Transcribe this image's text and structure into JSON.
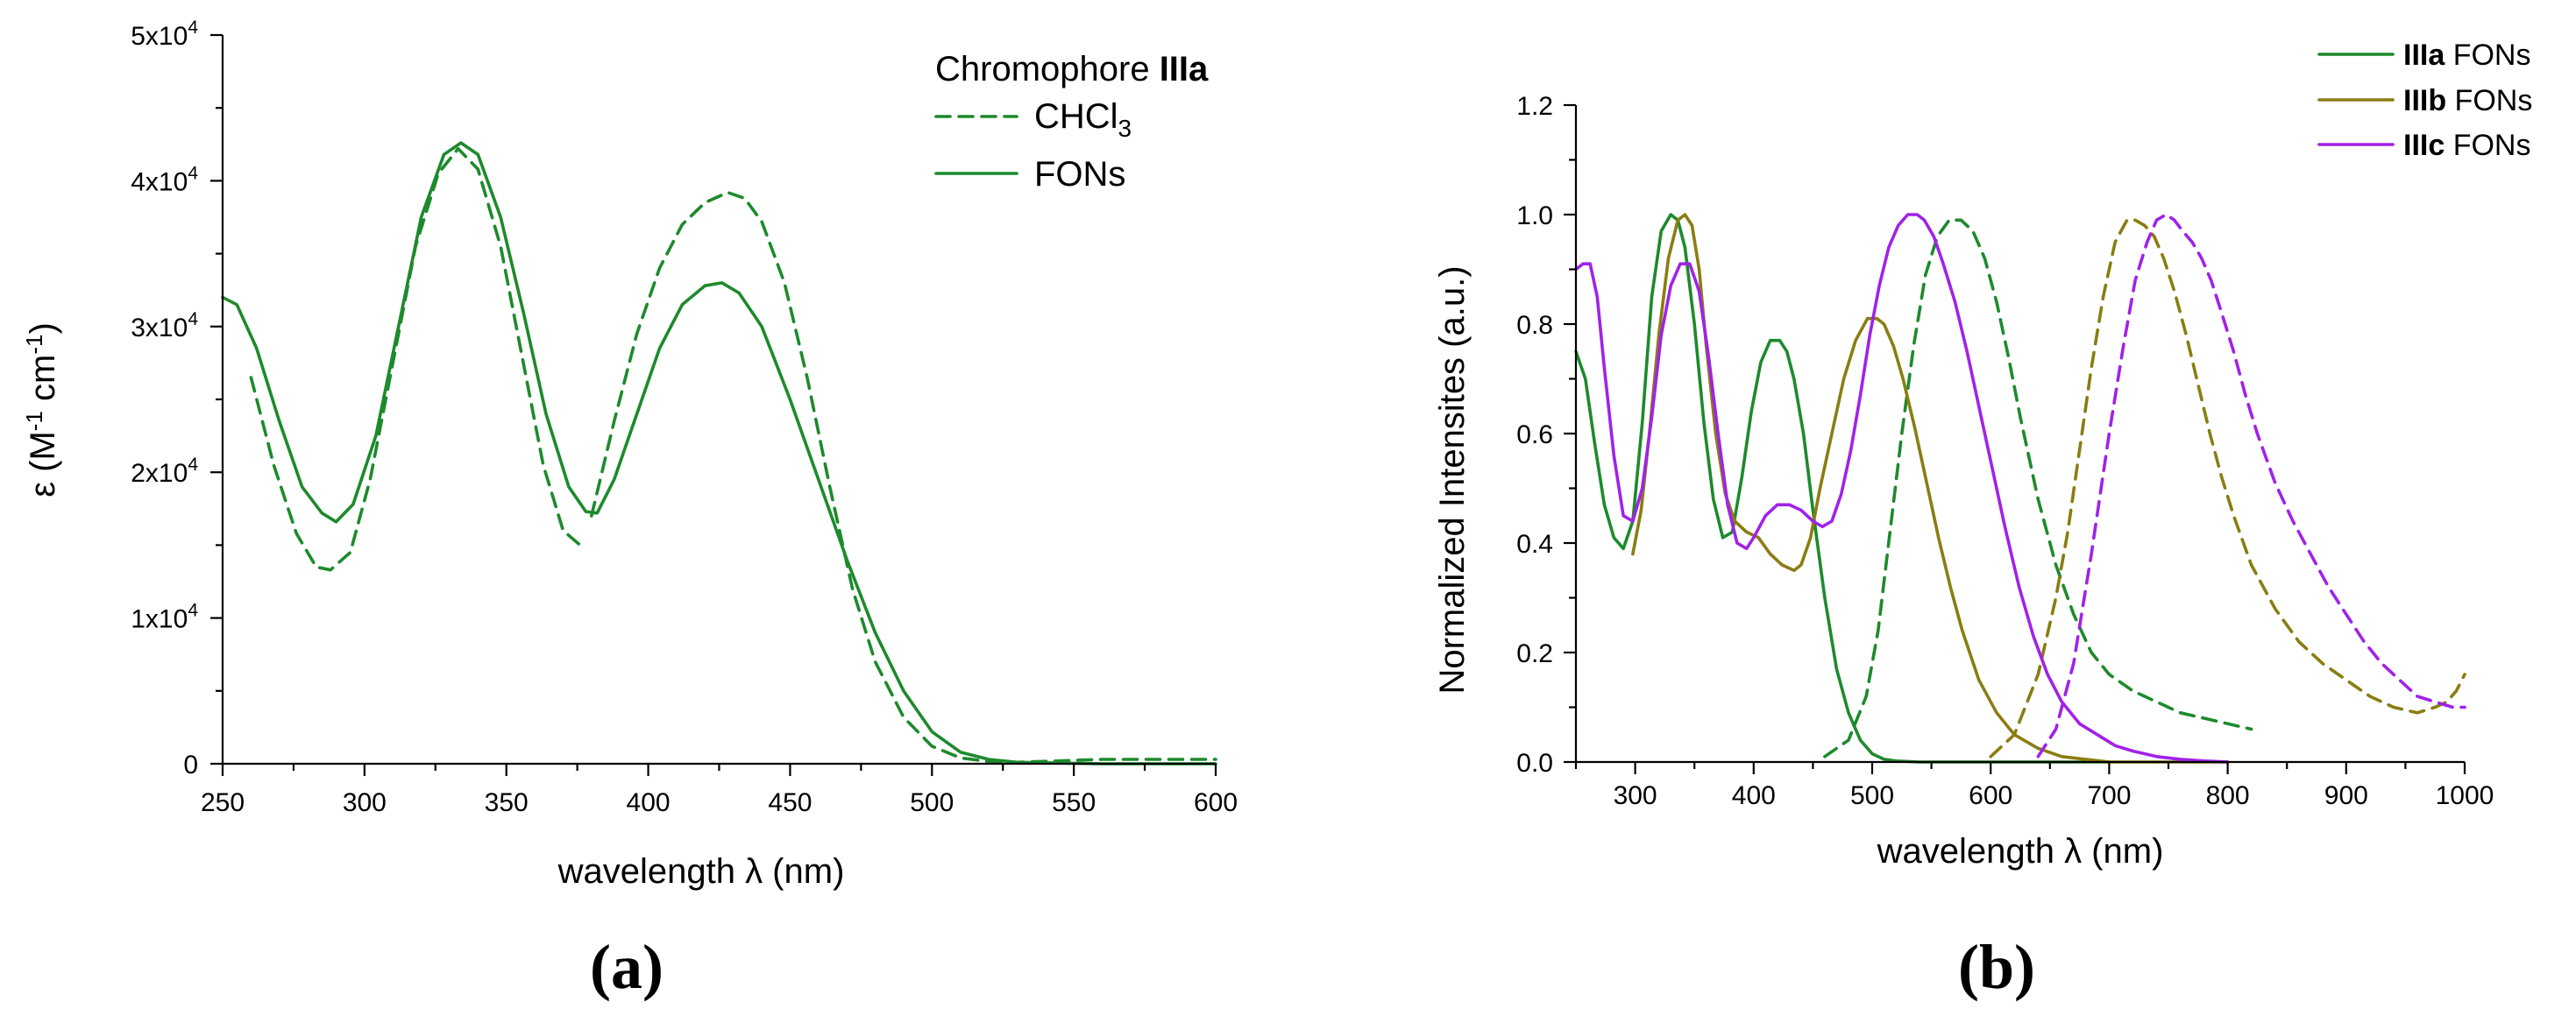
{
  "colors": {
    "green": "#1d8a2c",
    "olive": "#8a7d12",
    "violet": "#a022e8"
  },
  "chart_data": [
    {
      "panel": "(a)",
      "type": "line",
      "xlabel": "wavelength λ (nm)",
      "ylabel": "ε (M-1 cm-1)",
      "ylabel_parts": {
        "base": "ε (M",
        "sup1": "-1",
        "mid": " cm",
        "sup2": "-1",
        "end": ")"
      },
      "xlim": [
        250,
        600
      ],
      "ylim": [
        0,
        50000
      ],
      "x_ticks": [
        "250",
        "300",
        "350",
        "400",
        "450",
        "500",
        "550",
        "600"
      ],
      "y_ticks": [
        {
          "value": 0,
          "base": "0",
          "exp": ""
        },
        {
          "value": 10000,
          "base": "1x10",
          "exp": "4"
        },
        {
          "value": 20000,
          "base": "2x10",
          "exp": "4"
        },
        {
          "value": 30000,
          "base": "3x10",
          "exp": "4"
        },
        {
          "value": 40000,
          "base": "4x10",
          "exp": "4"
        },
        {
          "value": 50000,
          "base": "5x10",
          "exp": "4"
        }
      ],
      "legend": {
        "title_prefix": "Chromophore ",
        "title_bold": "IIIa",
        "entries": [
          {
            "label": "CHCl",
            "sub": "3",
            "style": "dashed"
          },
          {
            "label": "FONs",
            "sub": "",
            "style": "solid"
          }
        ]
      },
      "series": [
        {
          "name": "CHCl3",
          "style": "dashed",
          "color": "#1d8a2c",
          "x": [
            260,
            268,
            276,
            283,
            288,
            295,
            302,
            310,
            318,
            326,
            333,
            340,
            348,
            356,
            363,
            370,
            376
          ],
          "y": [
            26500,
            20500,
            15800,
            13500,
            13300,
            14500,
            19500,
            27500,
            35500,
            40500,
            42200,
            40800,
            35500,
            27500,
            20500,
            16000,
            15000
          ]
        },
        {
          "name": "CHCl3",
          "style": "dashed",
          "color": "#1d8a2c",
          "x": [
            380,
            388,
            396,
            404,
            412,
            420,
            428,
            434,
            440,
            448,
            456,
            464,
            472,
            480,
            490,
            500,
            510,
            520,
            530,
            545,
            560,
            580,
            600
          ],
          "y": [
            17000,
            23500,
            29500,
            34000,
            37000,
            38500,
            39200,
            38800,
            37200,
            33000,
            26500,
            19000,
            12000,
            7000,
            3200,
            1200,
            400,
            150,
            100,
            200,
            300,
            300,
            300
          ]
        },
        {
          "name": "FONs",
          "style": "solid",
          "color": "#1d8a2c",
          "x": [
            250,
            255,
            262,
            270,
            278,
            285,
            290,
            296,
            304,
            312,
            320,
            328,
            334,
            340,
            348,
            356,
            364,
            372,
            378,
            382,
            388,
            396,
            404,
            412,
            420,
            426,
            432,
            440,
            450,
            460,
            470,
            480,
            490,
            500,
            510,
            520,
            530,
            545,
            560,
            580,
            600
          ],
          "y": [
            32000,
            31500,
            28500,
            23500,
            19000,
            17200,
            16600,
            17800,
            22500,
            30000,
            37500,
            41800,
            42600,
            41800,
            37500,
            31000,
            24000,
            19000,
            17300,
            17200,
            19500,
            24000,
            28500,
            31500,
            32800,
            33000,
            32300,
            30000,
            25000,
            19500,
            14000,
            9000,
            5000,
            2200,
            800,
            300,
            100,
            50,
            0,
            0,
            0
          ]
        }
      ]
    },
    {
      "panel": "(b)",
      "type": "line",
      "xlabel": "wavelength λ (nm)",
      "ylabel": "Normalized Intensites (a.u.)",
      "xlim": [
        250,
        1000
      ],
      "ylim": [
        0,
        1.2
      ],
      "x_ticks": [
        "300",
        "400",
        "500",
        "600",
        "700",
        "800",
        "900",
        "1000"
      ],
      "y_ticks": [
        "0.0",
        "0.2",
        "0.4",
        "0.6",
        "0.8",
        "1.0",
        "1.2"
      ],
      "legend": {
        "entries": [
          {
            "bold": "IIIa",
            "label": " FONs",
            "color": "#1d8a2c"
          },
          {
            "bold": "IIIb",
            "label": " FONs",
            "color": "#8a7d12"
          },
          {
            "bold": "IIIc",
            "label": " FONs",
            "color": "#a022e8"
          }
        ]
      },
      "series": [
        {
          "name": "IIIa FONs absorption",
          "style": "solid",
          "color": "#1d8a2c",
          "x": [
            250,
            258,
            266,
            274,
            282,
            290,
            298,
            306,
            314,
            322,
            330,
            336,
            342,
            350,
            358,
            366,
            374,
            382,
            390,
            398,
            406,
            414,
            422,
            428,
            434,
            442,
            450,
            460,
            470,
            480,
            490,
            500,
            510,
            520,
            540,
            560,
            600,
            650,
            700
          ],
          "y": [
            0.75,
            0.7,
            0.58,
            0.47,
            0.41,
            0.39,
            0.44,
            0.62,
            0.85,
            0.97,
            1.0,
            0.99,
            0.94,
            0.8,
            0.62,
            0.48,
            0.41,
            0.42,
            0.52,
            0.64,
            0.73,
            0.77,
            0.77,
            0.75,
            0.7,
            0.6,
            0.46,
            0.3,
            0.17,
            0.09,
            0.04,
            0.015,
            0.005,
            0.002,
            0,
            0,
            0,
            0,
            0
          ]
        },
        {
          "name": "IIIa FONs emission",
          "style": "dashed",
          "color": "#1d8a2c",
          "x": [
            460,
            480,
            495,
            505,
            515,
            525,
            535,
            545,
            555,
            565,
            575,
            585,
            595,
            605,
            615,
            625,
            640,
            655,
            670,
            685,
            700,
            720,
            740,
            760,
            780,
            800,
            810,
            820
          ],
          "y": [
            0.01,
            0.04,
            0.12,
            0.24,
            0.42,
            0.6,
            0.76,
            0.89,
            0.96,
            0.99,
            0.99,
            0.97,
            0.92,
            0.84,
            0.74,
            0.63,
            0.48,
            0.36,
            0.27,
            0.2,
            0.16,
            0.13,
            0.11,
            0.09,
            0.08,
            0.07,
            0.065,
            0.06
          ]
        },
        {
          "name": "IIIb FONs absorption",
          "style": "solid",
          "color": "#8a7d12",
          "x": [
            298,
            305,
            312,
            320,
            328,
            336,
            342,
            348,
            354,
            360,
            368,
            376,
            384,
            394,
            404,
            414,
            424,
            434,
            440,
            448,
            456,
            466,
            476,
            486,
            496,
            504,
            510,
            518,
            526,
            536,
            546,
            556,
            566,
            576,
            590,
            605,
            620,
            640,
            660,
            680,
            700,
            730,
            760,
            800
          ],
          "y": [
            0.38,
            0.46,
            0.6,
            0.78,
            0.92,
            0.99,
            1.0,
            0.98,
            0.9,
            0.76,
            0.6,
            0.49,
            0.44,
            0.42,
            0.41,
            0.38,
            0.36,
            0.35,
            0.36,
            0.41,
            0.5,
            0.6,
            0.7,
            0.77,
            0.81,
            0.81,
            0.8,
            0.76,
            0.7,
            0.61,
            0.51,
            0.41,
            0.32,
            0.24,
            0.15,
            0.09,
            0.05,
            0.025,
            0.01,
            0.005,
            0,
            0,
            0,
            0
          ]
        },
        {
          "name": "IIIb FONs emission",
          "style": "dashed",
          "color": "#8a7d12",
          "x": [
            600,
            620,
            640,
            655,
            665,
            675,
            685,
            695,
            705,
            715,
            722,
            730,
            738,
            746,
            755,
            765,
            775,
            785,
            795,
            805,
            820,
            840,
            860,
            880,
            900,
            920,
            940,
            960,
            975,
            985,
            993,
            1000
          ],
          "y": [
            0.01,
            0.05,
            0.16,
            0.3,
            0.42,
            0.57,
            0.72,
            0.85,
            0.95,
            0.99,
            0.99,
            0.98,
            0.96,
            0.92,
            0.86,
            0.78,
            0.69,
            0.6,
            0.52,
            0.45,
            0.36,
            0.28,
            0.22,
            0.18,
            0.15,
            0.12,
            0.1,
            0.09,
            0.1,
            0.11,
            0.13,
            0.16
          ]
        },
        {
          "name": "IIIc FONs absorption",
          "style": "solid",
          "color": "#a022e8",
          "x": [
            250,
            256,
            262,
            268,
            274,
            282,
            290,
            298,
            306,
            314,
            322,
            330,
            338,
            346,
            354,
            362,
            370,
            378,
            386,
            394,
            400,
            410,
            420,
            430,
            440,
            450,
            458,
            466,
            474,
            482,
            490,
            498,
            506,
            514,
            522,
            530,
            538,
            544,
            552,
            560,
            570,
            580,
            590,
            600,
            612,
            624,
            636,
            648,
            660,
            675,
            690,
            705,
            720,
            740,
            760,
            780,
            800
          ],
          "y": [
            0.9,
            0.91,
            0.91,
            0.85,
            0.72,
            0.56,
            0.45,
            0.44,
            0.5,
            0.63,
            0.78,
            0.87,
            0.91,
            0.91,
            0.86,
            0.74,
            0.6,
            0.47,
            0.4,
            0.39,
            0.41,
            0.45,
            0.47,
            0.47,
            0.46,
            0.44,
            0.43,
            0.44,
            0.49,
            0.57,
            0.67,
            0.78,
            0.87,
            0.94,
            0.98,
            1.0,
            1.0,
            0.99,
            0.96,
            0.91,
            0.84,
            0.75,
            0.65,
            0.55,
            0.43,
            0.32,
            0.23,
            0.16,
            0.11,
            0.07,
            0.05,
            0.03,
            0.02,
            0.01,
            0.005,
            0.002,
            0
          ]
        },
        {
          "name": "IIIc FONs emission",
          "style": "dashed",
          "color": "#a022e8",
          "x": [
            640,
            655,
            670,
            685,
            700,
            712,
            722,
            732,
            740,
            748,
            755,
            762,
            770,
            778,
            786,
            795,
            805,
            815,
            825,
            840,
            855,
            870,
            885,
            900,
            915,
            930,
            945,
            960,
            975,
            990,
            1000
          ],
          "y": [
            0.01,
            0.06,
            0.18,
            0.38,
            0.6,
            0.76,
            0.88,
            0.95,
            0.99,
            1.0,
            0.99,
            0.97,
            0.95,
            0.92,
            0.88,
            0.82,
            0.75,
            0.67,
            0.6,
            0.51,
            0.44,
            0.38,
            0.32,
            0.27,
            0.22,
            0.18,
            0.15,
            0.12,
            0.11,
            0.1,
            0.1
          ]
        }
      ]
    }
  ]
}
